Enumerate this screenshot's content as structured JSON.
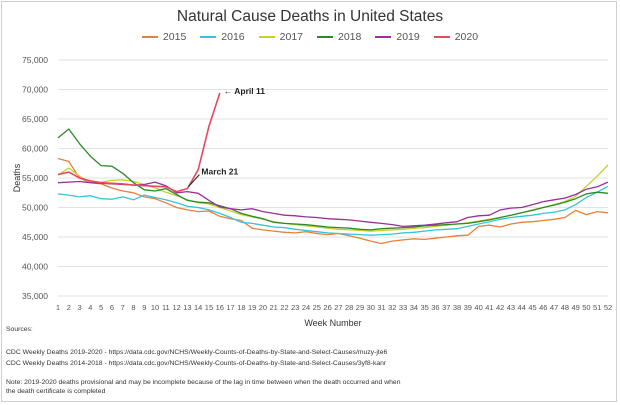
{
  "chart_data": {
    "type": "line",
    "title": "Natural Cause Deaths in United States",
    "xlabel": "Week Number",
    "ylabel": "Deaths",
    "ylim": [
      35000,
      75000
    ],
    "yticks": [
      35000,
      40000,
      45000,
      50000,
      55000,
      60000,
      65000,
      70000,
      75000
    ],
    "ytick_labels": [
      "35,000",
      "40,000",
      "45,000",
      "50,000",
      "55,000",
      "60,000",
      "65,000",
      "70,000",
      "75,000"
    ],
    "x": [
      1,
      2,
      3,
      4,
      5,
      6,
      7,
      8,
      9,
      10,
      11,
      12,
      13,
      14,
      15,
      16,
      17,
      18,
      19,
      20,
      21,
      22,
      23,
      24,
      25,
      26,
      27,
      28,
      29,
      30,
      31,
      32,
      33,
      34,
      35,
      36,
      37,
      38,
      39,
      40,
      41,
      42,
      43,
      44,
      45,
      46,
      47,
      48,
      49,
      50,
      51,
      52
    ],
    "grid": "horizontal",
    "legend_position": "top",
    "series": [
      {
        "name": "2015",
        "color": "#e8803a",
        "values": [
          58300,
          57800,
          55000,
          54200,
          54000,
          53300,
          52800,
          52500,
          51800,
          51500,
          50800,
          50000,
          49600,
          49300,
          49400,
          48500,
          48100,
          47800,
          46500,
          46200,
          46000,
          45800,
          45700,
          45900,
          45600,
          45400,
          45600,
          45200,
          44800,
          44300,
          43900,
          44300,
          44500,
          44700,
          44600,
          44800,
          45000,
          45200,
          45300,
          46800,
          47000,
          46700,
          47200,
          47500,
          47600,
          47800,
          48000,
          48300,
          49500,
          48800,
          49300,
          49100
        ]
      },
      {
        "name": "2016",
        "color": "#37c3d9",
        "values": [
          52300,
          52100,
          51800,
          52000,
          51500,
          51400,
          51800,
          51300,
          52100,
          51700,
          51300,
          50800,
          50200,
          50000,
          49600,
          49000,
          48300,
          47500,
          47300,
          47000,
          46700,
          46600,
          46300,
          46100,
          45900,
          45700,
          45600,
          45500,
          45400,
          45300,
          45400,
          45500,
          45700,
          45800,
          46000,
          46200,
          46300,
          46400,
          46800,
          47200,
          47600,
          48000,
          48300,
          48500,
          48700,
          49000,
          49200,
          49600,
          50500,
          51700,
          52600,
          53600
        ]
      },
      {
        "name": "2017",
        "color": "#c6cf2c",
        "values": [
          55500,
          56700,
          55300,
          54200,
          54300,
          54600,
          54700,
          54400,
          53900,
          53300,
          52600,
          52000,
          51300,
          50800,
          50600,
          50000,
          49400,
          48800,
          48400,
          48000,
          47600,
          47300,
          47100,
          46900,
          46700,
          46500,
          46300,
          46200,
          46100,
          46000,
          46100,
          46200,
          46300,
          46500,
          46600,
          46800,
          47000,
          47200,
          47400,
          47700,
          48000,
          48300,
          48700,
          49100,
          49600,
          50000,
          50500,
          51000,
          51900,
          53600,
          55300,
          57200
        ]
      },
      {
        "name": "2018",
        "color": "#2c8a2c",
        "values": [
          61800,
          63300,
          60800,
          58700,
          57100,
          57000,
          55800,
          54200,
          53000,
          52800,
          53200,
          52200,
          51200,
          50900,
          50800,
          50300,
          49800,
          49000,
          48500,
          48100,
          47500,
          47300,
          47200,
          47100,
          46900,
          46700,
          46600,
          46500,
          46300,
          46200,
          46400,
          46500,
          46600,
          46700,
          46900,
          47000,
          47100,
          47200,
          47300,
          47600,
          47900,
          48300,
          48700,
          49100,
          49500,
          50000,
          50400,
          50900,
          51500,
          52300,
          52600,
          52400
        ]
      },
      {
        "name": "2019",
        "color": "#9b2f9b",
        "values": [
          54200,
          54300,
          54400,
          54200,
          54100,
          54000,
          53900,
          53800,
          53900,
          54300,
          53700,
          52500,
          52700,
          52400,
          51200,
          50100,
          49800,
          49600,
          49800,
          49300,
          49000,
          48700,
          48600,
          48400,
          48300,
          48100,
          48000,
          47900,
          47700,
          47500,
          47300,
          47100,
          46800,
          46900,
          47000,
          47200,
          47400,
          47600,
          48300,
          48600,
          48700,
          49600,
          49900,
          50000,
          50500,
          51000,
          51300,
          51600,
          52200,
          53100,
          53500,
          54300
        ]
      },
      {
        "name": "2020",
        "color": "#e8485f",
        "values": [
          55600,
          56000,
          55000,
          54500,
          54200,
          54100,
          54000,
          53800,
          53700,
          53600,
          53500,
          52700,
          53200,
          56400,
          63800,
          69400,
          null,
          null,
          null,
          null,
          null,
          null,
          null,
          null,
          null,
          null,
          null,
          null,
          null,
          null,
          null,
          null,
          null,
          null,
          null,
          null,
          null,
          null,
          null,
          null,
          null,
          null,
          null,
          null,
          null,
          null,
          null,
          null,
          null,
          null,
          null,
          null
        ]
      }
    ],
    "annotations": [
      {
        "text": "← April 11",
        "x": 16,
        "y": 69400
      },
      {
        "text": "March 21",
        "x": 13,
        "y": 53200
      }
    ]
  },
  "footer": {
    "sources_label": "Sources:",
    "source_1": "CDC Weekly Deaths 2019-2020 - https://data.cdc.gov/NCHS/Weekly-Counts-of-Deaths-by-State-and-Select-Causes/muzy-jte6",
    "source_2": "CDC Weekly Deaths 2014-2018 - https://data.cdc.gov/NCHS/Weekly-Counts-of-Deaths-by-State-and-Select-Causes/3yf8-kanr",
    "note": "Note: 2019-2020 deaths provisional and may be incomplete because of the lag in time between when the death occurred and when the death certificate is completed"
  }
}
